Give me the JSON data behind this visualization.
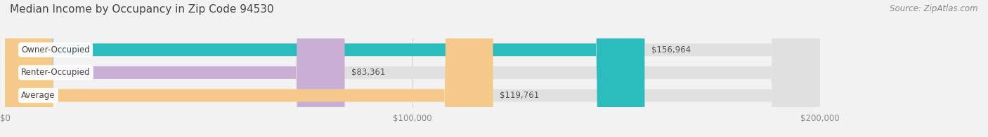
{
  "title": "Median Income by Occupancy in Zip Code 94530",
  "source": "Source: ZipAtlas.com",
  "categories": [
    "Owner-Occupied",
    "Renter-Occupied",
    "Average"
  ],
  "values": [
    156964,
    83361,
    119761
  ],
  "labels": [
    "$156,964",
    "$83,361",
    "$119,761"
  ],
  "bar_colors": [
    "#2bbcbd",
    "#c9aed6",
    "#f5c98a"
  ],
  "background_color": "#f2f2f2",
  "bar_bg_color": "#e0e0e0",
  "xlim": [
    0,
    200000
  ],
  "xticklabels": [
    "$0",
    "$100,000",
    "$200,000"
  ],
  "title_fontsize": 11,
  "source_fontsize": 8.5,
  "label_fontsize": 8.5,
  "tick_fontsize": 8.5
}
